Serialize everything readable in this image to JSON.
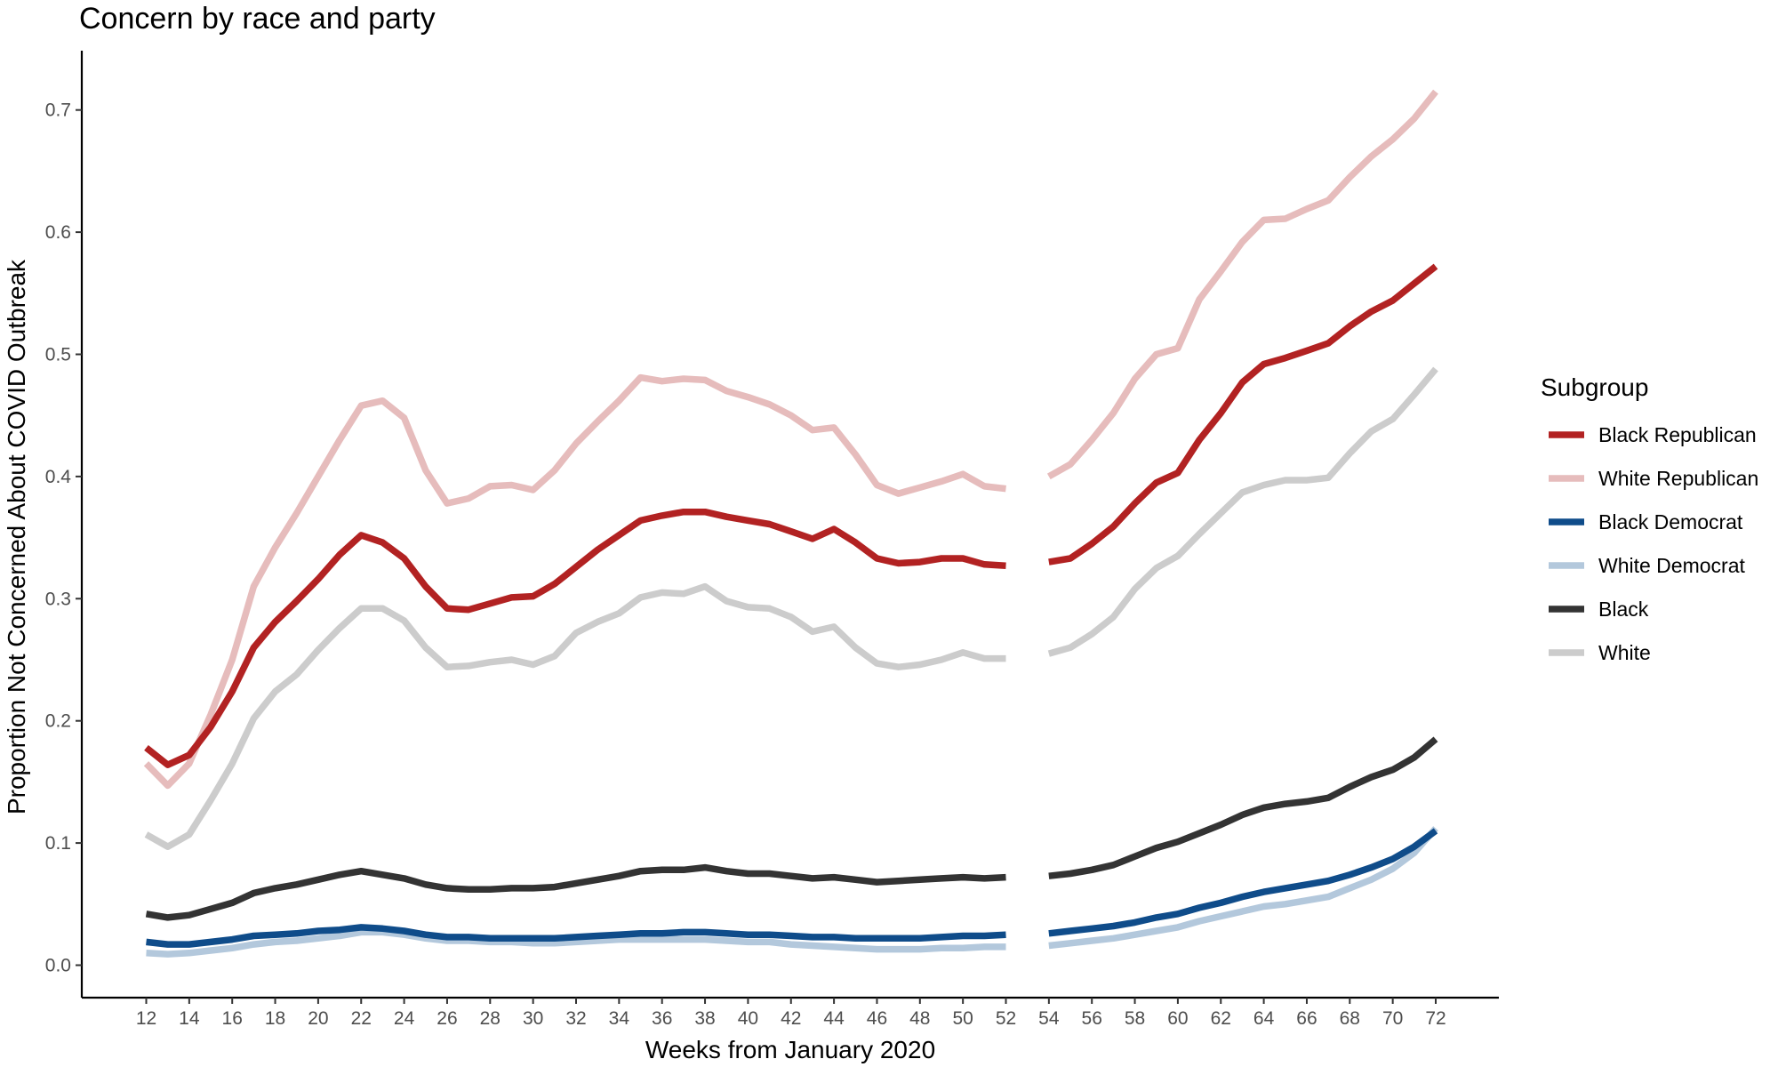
{
  "chart_data": {
    "type": "line",
    "title": "Concern by race and party",
    "xlabel": "Weeks from January 2020",
    "ylabel": "Proportion Not Concerned About COVID Outbreak",
    "xlim": [
      12,
      72
    ],
    "ylim": [
      0,
      0.7
    ],
    "xticks": [
      12,
      14,
      16,
      18,
      20,
      22,
      24,
      26,
      28,
      30,
      32,
      34,
      36,
      38,
      40,
      42,
      44,
      46,
      48,
      50,
      52,
      54,
      56,
      58,
      60,
      62,
      64,
      66,
      68,
      70,
      72
    ],
    "yticks": [
      0.0,
      0.1,
      0.2,
      0.3,
      0.4,
      0.5,
      0.6,
      0.7
    ],
    "ytick_labels": [
      "0.0",
      "0.1",
      "0.2",
      "0.3",
      "0.4",
      "0.5",
      "0.6",
      "0.7"
    ],
    "grid": false,
    "legend": {
      "title": "Subgroup",
      "placement": "right"
    },
    "x": [
      12,
      13,
      14,
      15,
      16,
      17,
      18,
      19,
      20,
      21,
      22,
      23,
      24,
      25,
      26,
      27,
      28,
      29,
      30,
      31,
      32,
      33,
      34,
      35,
      36,
      37,
      38,
      39,
      40,
      41,
      42,
      43,
      44,
      45,
      46,
      47,
      48,
      49,
      50,
      51,
      52,
      54,
      55,
      56,
      57,
      58,
      59,
      60,
      61,
      62,
      63,
      64,
      65,
      66,
      67,
      68,
      69,
      70,
      71,
      72
    ],
    "series": [
      {
        "name": "White Republican",
        "color": "#e6bcbc",
        "values": [
          0.165,
          0.147,
          0.165,
          0.205,
          0.25,
          0.31,
          0.342,
          0.37,
          0.4,
          0.43,
          0.458,
          0.462,
          0.448,
          0.405,
          0.378,
          0.382,
          0.392,
          0.393,
          0.389,
          0.405,
          0.427,
          0.445,
          0.462,
          0.481,
          0.478,
          0.48,
          0.479,
          0.47,
          0.465,
          0.459,
          0.45,
          0.438,
          0.44,
          0.418,
          0.393,
          0.386,
          0.391,
          0.396,
          0.402,
          0.392,
          0.39,
          0.4,
          0.41,
          0.43,
          0.452,
          0.48,
          0.5,
          0.505,
          0.545,
          0.568,
          0.592,
          0.61,
          0.611,
          0.619,
          0.626,
          0.645,
          0.662,
          0.676,
          0.693,
          0.715
        ]
      },
      {
        "name": "White",
        "color": "#cccccc",
        "values": [
          0.107,
          0.097,
          0.107,
          0.135,
          0.165,
          0.202,
          0.224,
          0.238,
          0.258,
          0.276,
          0.292,
          0.292,
          0.282,
          0.26,
          0.244,
          0.245,
          0.248,
          0.25,
          0.246,
          0.253,
          0.272,
          0.281,
          0.288,
          0.301,
          0.305,
          0.304,
          0.31,
          0.298,
          0.293,
          0.292,
          0.285,
          0.273,
          0.277,
          0.26,
          0.247,
          0.244,
          0.246,
          0.25,
          0.256,
          0.251,
          0.251,
          0.255,
          0.26,
          0.271,
          0.285,
          0.308,
          0.325,
          0.335,
          0.353,
          0.37,
          0.387,
          0.393,
          0.397,
          0.397,
          0.399,
          0.419,
          0.437,
          0.447,
          0.467,
          0.488
        ]
      },
      {
        "name": "White Democrat",
        "color": "#b3c8dc",
        "values": [
          0.01,
          0.009,
          0.01,
          0.012,
          0.014,
          0.017,
          0.019,
          0.02,
          0.022,
          0.024,
          0.027,
          0.027,
          0.025,
          0.022,
          0.02,
          0.02,
          0.019,
          0.019,
          0.018,
          0.018,
          0.019,
          0.02,
          0.021,
          0.021,
          0.021,
          0.021,
          0.021,
          0.02,
          0.019,
          0.019,
          0.017,
          0.016,
          0.015,
          0.014,
          0.013,
          0.013,
          0.013,
          0.014,
          0.014,
          0.015,
          0.015,
          0.016,
          0.018,
          0.02,
          0.022,
          0.025,
          0.028,
          0.031,
          0.036,
          0.04,
          0.044,
          0.048,
          0.05,
          0.053,
          0.056,
          0.063,
          0.07,
          0.079,
          0.092,
          0.112
        ]
      },
      {
        "name": "Black Democrat",
        "color": "#0f4c8a",
        "values": [
          0.019,
          0.017,
          0.017,
          0.019,
          0.021,
          0.024,
          0.025,
          0.026,
          0.028,
          0.029,
          0.031,
          0.03,
          0.028,
          0.025,
          0.023,
          0.023,
          0.022,
          0.022,
          0.022,
          0.022,
          0.023,
          0.024,
          0.025,
          0.026,
          0.026,
          0.027,
          0.027,
          0.026,
          0.025,
          0.025,
          0.024,
          0.023,
          0.023,
          0.022,
          0.022,
          0.022,
          0.022,
          0.023,
          0.024,
          0.024,
          0.025,
          0.026,
          0.028,
          0.03,
          0.032,
          0.035,
          0.039,
          0.042,
          0.047,
          0.051,
          0.056,
          0.06,
          0.063,
          0.066,
          0.069,
          0.074,
          0.08,
          0.087,
          0.097,
          0.11
        ]
      },
      {
        "name": "Black",
        "color": "#333333",
        "values": [
          0.042,
          0.039,
          0.041,
          0.046,
          0.051,
          0.059,
          0.063,
          0.066,
          0.07,
          0.074,
          0.077,
          0.074,
          0.071,
          0.066,
          0.063,
          0.062,
          0.062,
          0.063,
          0.063,
          0.064,
          0.067,
          0.07,
          0.073,
          0.077,
          0.078,
          0.078,
          0.08,
          0.077,
          0.075,
          0.075,
          0.073,
          0.071,
          0.072,
          0.07,
          0.068,
          0.069,
          0.07,
          0.071,
          0.072,
          0.071,
          0.072,
          0.073,
          0.075,
          0.078,
          0.082,
          0.089,
          0.096,
          0.101,
          0.108,
          0.115,
          0.123,
          0.129,
          0.132,
          0.134,
          0.137,
          0.146,
          0.154,
          0.16,
          0.17,
          0.185
        ]
      },
      {
        "name": "Black Republican",
        "color": "#b22222",
        "values": [
          0.178,
          0.164,
          0.172,
          0.195,
          0.224,
          0.26,
          0.281,
          0.298,
          0.316,
          0.336,
          0.352,
          0.346,
          0.333,
          0.31,
          0.292,
          0.291,
          0.296,
          0.301,
          0.302,
          0.312,
          0.326,
          0.34,
          0.352,
          0.364,
          0.368,
          0.371,
          0.371,
          0.367,
          0.364,
          0.361,
          0.355,
          0.349,
          0.357,
          0.346,
          0.333,
          0.329,
          0.33,
          0.333,
          0.333,
          0.328,
          0.327,
          0.33,
          0.333,
          0.345,
          0.359,
          0.378,
          0.395,
          0.403,
          0.43,
          0.452,
          0.477,
          0.492,
          0.497,
          0.503,
          0.509,
          0.523,
          0.535,
          0.544,
          0.558,
          0.572
        ]
      }
    ],
    "legend_order": [
      "Black Republican",
      "White Republican",
      "Black Democrat",
      "White Democrat",
      "Black",
      "White"
    ]
  }
}
